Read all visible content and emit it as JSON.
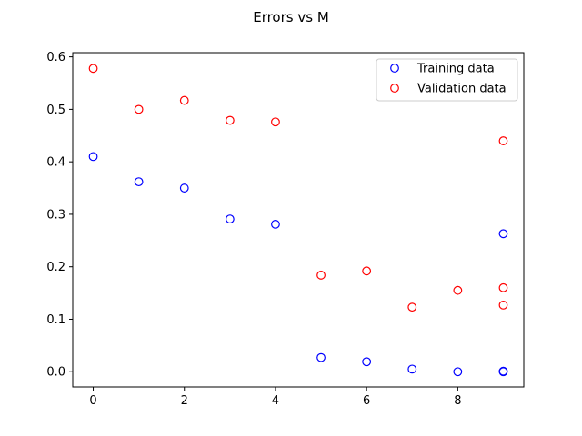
{
  "chart_data": {
    "type": "scatter",
    "title": "Errors vs M",
    "xlabel": "",
    "ylabel": "",
    "xlim": [
      -0.45,
      9.45
    ],
    "ylim": [
      -0.029,
      0.608
    ],
    "xticks": [
      0,
      2,
      4,
      6,
      8
    ],
    "yticks": [
      0.0,
      0.1,
      0.2,
      0.3,
      0.4,
      0.5,
      0.6
    ],
    "xtick_labels": [
      "0",
      "2",
      "4",
      "6",
      "8"
    ],
    "ytick_labels": [
      "0.0",
      "0.1",
      "0.2",
      "0.3",
      "0.4",
      "0.5",
      "0.6"
    ],
    "grid": false,
    "legend_position": "top-right",
    "marker": "hollow-circle",
    "series": [
      {
        "name": "Training data",
        "color": "#0000ff",
        "points": [
          {
            "x": 0,
            "y": 0.41
          },
          {
            "x": 1,
            "y": 0.362
          },
          {
            "x": 2,
            "y": 0.35
          },
          {
            "x": 3,
            "y": 0.291
          },
          {
            "x": 4,
            "y": 0.281
          },
          {
            "x": 5,
            "y": 0.027
          },
          {
            "x": 6,
            "y": 0.019
          },
          {
            "x": 7,
            "y": 0.005
          },
          {
            "x": 8,
            "y": 0.0
          },
          {
            "x": 9,
            "y": 0.263
          },
          {
            "x": 9,
            "y": 0.001
          },
          {
            "x": 9,
            "y": 0.0
          }
        ]
      },
      {
        "name": "Validation data",
        "color": "#ff0000",
        "points": [
          {
            "x": 0,
            "y": 0.578
          },
          {
            "x": 1,
            "y": 0.5
          },
          {
            "x": 2,
            "y": 0.517
          },
          {
            "x": 3,
            "y": 0.479
          },
          {
            "x": 4,
            "y": 0.476
          },
          {
            "x": 5,
            "y": 0.184
          },
          {
            "x": 6,
            "y": 0.192
          },
          {
            "x": 7,
            "y": 0.123
          },
          {
            "x": 8,
            "y": 0.155
          },
          {
            "x": 9,
            "y": 0.44
          },
          {
            "x": 9,
            "y": 0.16
          },
          {
            "x": 9,
            "y": 0.127
          }
        ]
      }
    ]
  }
}
